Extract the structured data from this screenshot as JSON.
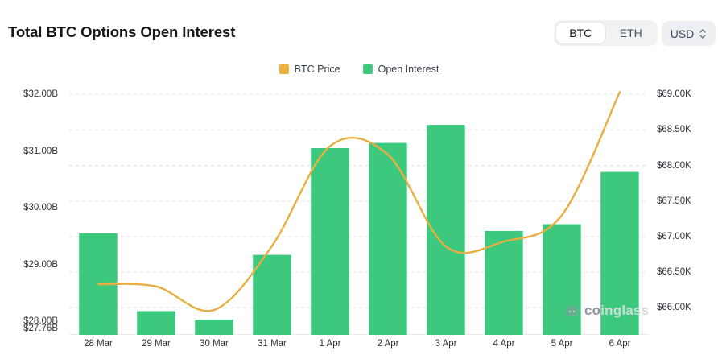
{
  "header": {
    "title": "Total BTC Options Open Interest",
    "asset_toggle": {
      "options": [
        "BTC",
        "ETH"
      ],
      "selected": "BTC"
    },
    "currency_select": {
      "value": "USD"
    }
  },
  "legend": [
    {
      "label": "BTC Price",
      "color": "#ecb340"
    },
    {
      "label": "Open Interest",
      "color": "#3dc97d"
    }
  ],
  "watermark": {
    "prefix": "co",
    "suffix": "inglass"
  },
  "chart_data": {
    "type": "bar+line combo",
    "title": "Total BTC Options Open Interest",
    "categories": [
      "28 Mar",
      "29 Mar",
      "30 Mar",
      "31 Mar",
      "1 Apr",
      "2 Apr",
      "3 Apr",
      "4 Apr",
      "5 Apr",
      "6 Apr"
    ],
    "series": [
      {
        "name": "Open Interest",
        "type": "bar",
        "axis": "left",
        "unit": "USD billions",
        "color": "#3dc97d",
        "values": [
          29.55,
          28.18,
          28.03,
          29.17,
          31.05,
          31.14,
          31.46,
          29.59,
          29.71,
          30.63
        ]
      },
      {
        "name": "BTC Price",
        "type": "line",
        "axis": "right",
        "unit": "USD thousands",
        "color": "#e9ae42",
        "values": [
          66.33,
          66.3,
          65.97,
          66.87,
          68.27,
          68.15,
          66.86,
          66.93,
          67.3,
          69.03
        ]
      }
    ],
    "left_axis": {
      "min": 27.76,
      "max": 32.0,
      "ticks": [
        {
          "label": "$32.00B",
          "value": 32.0
        },
        {
          "label": "$31.00B",
          "value": 31.0
        },
        {
          "label": "$30.00B",
          "value": 30.0
        },
        {
          "label": "$29.00B",
          "value": 29.0
        },
        {
          "label": "$28.00B",
          "value": 28.0
        },
        {
          "label": "$27.76B",
          "value": 27.76
        }
      ]
    },
    "right_axis": {
      "min": 65.62,
      "max": 69.0,
      "ticks": [
        {
          "label": "$69.00K",
          "value": 69.0
        },
        {
          "label": "$68.50K",
          "value": 68.5
        },
        {
          "label": "$68.00K",
          "value": 68.0
        },
        {
          "label": "$67.50K",
          "value": 67.5
        },
        {
          "label": "$67.00K",
          "value": 67.0
        },
        {
          "label": "$66.50K",
          "value": 66.5
        },
        {
          "label": "$66.00K",
          "value": 66.0
        }
      ]
    },
    "grid": "horizontal dashed lines aligned to right-axis ticks",
    "legend_position": "top-center"
  }
}
